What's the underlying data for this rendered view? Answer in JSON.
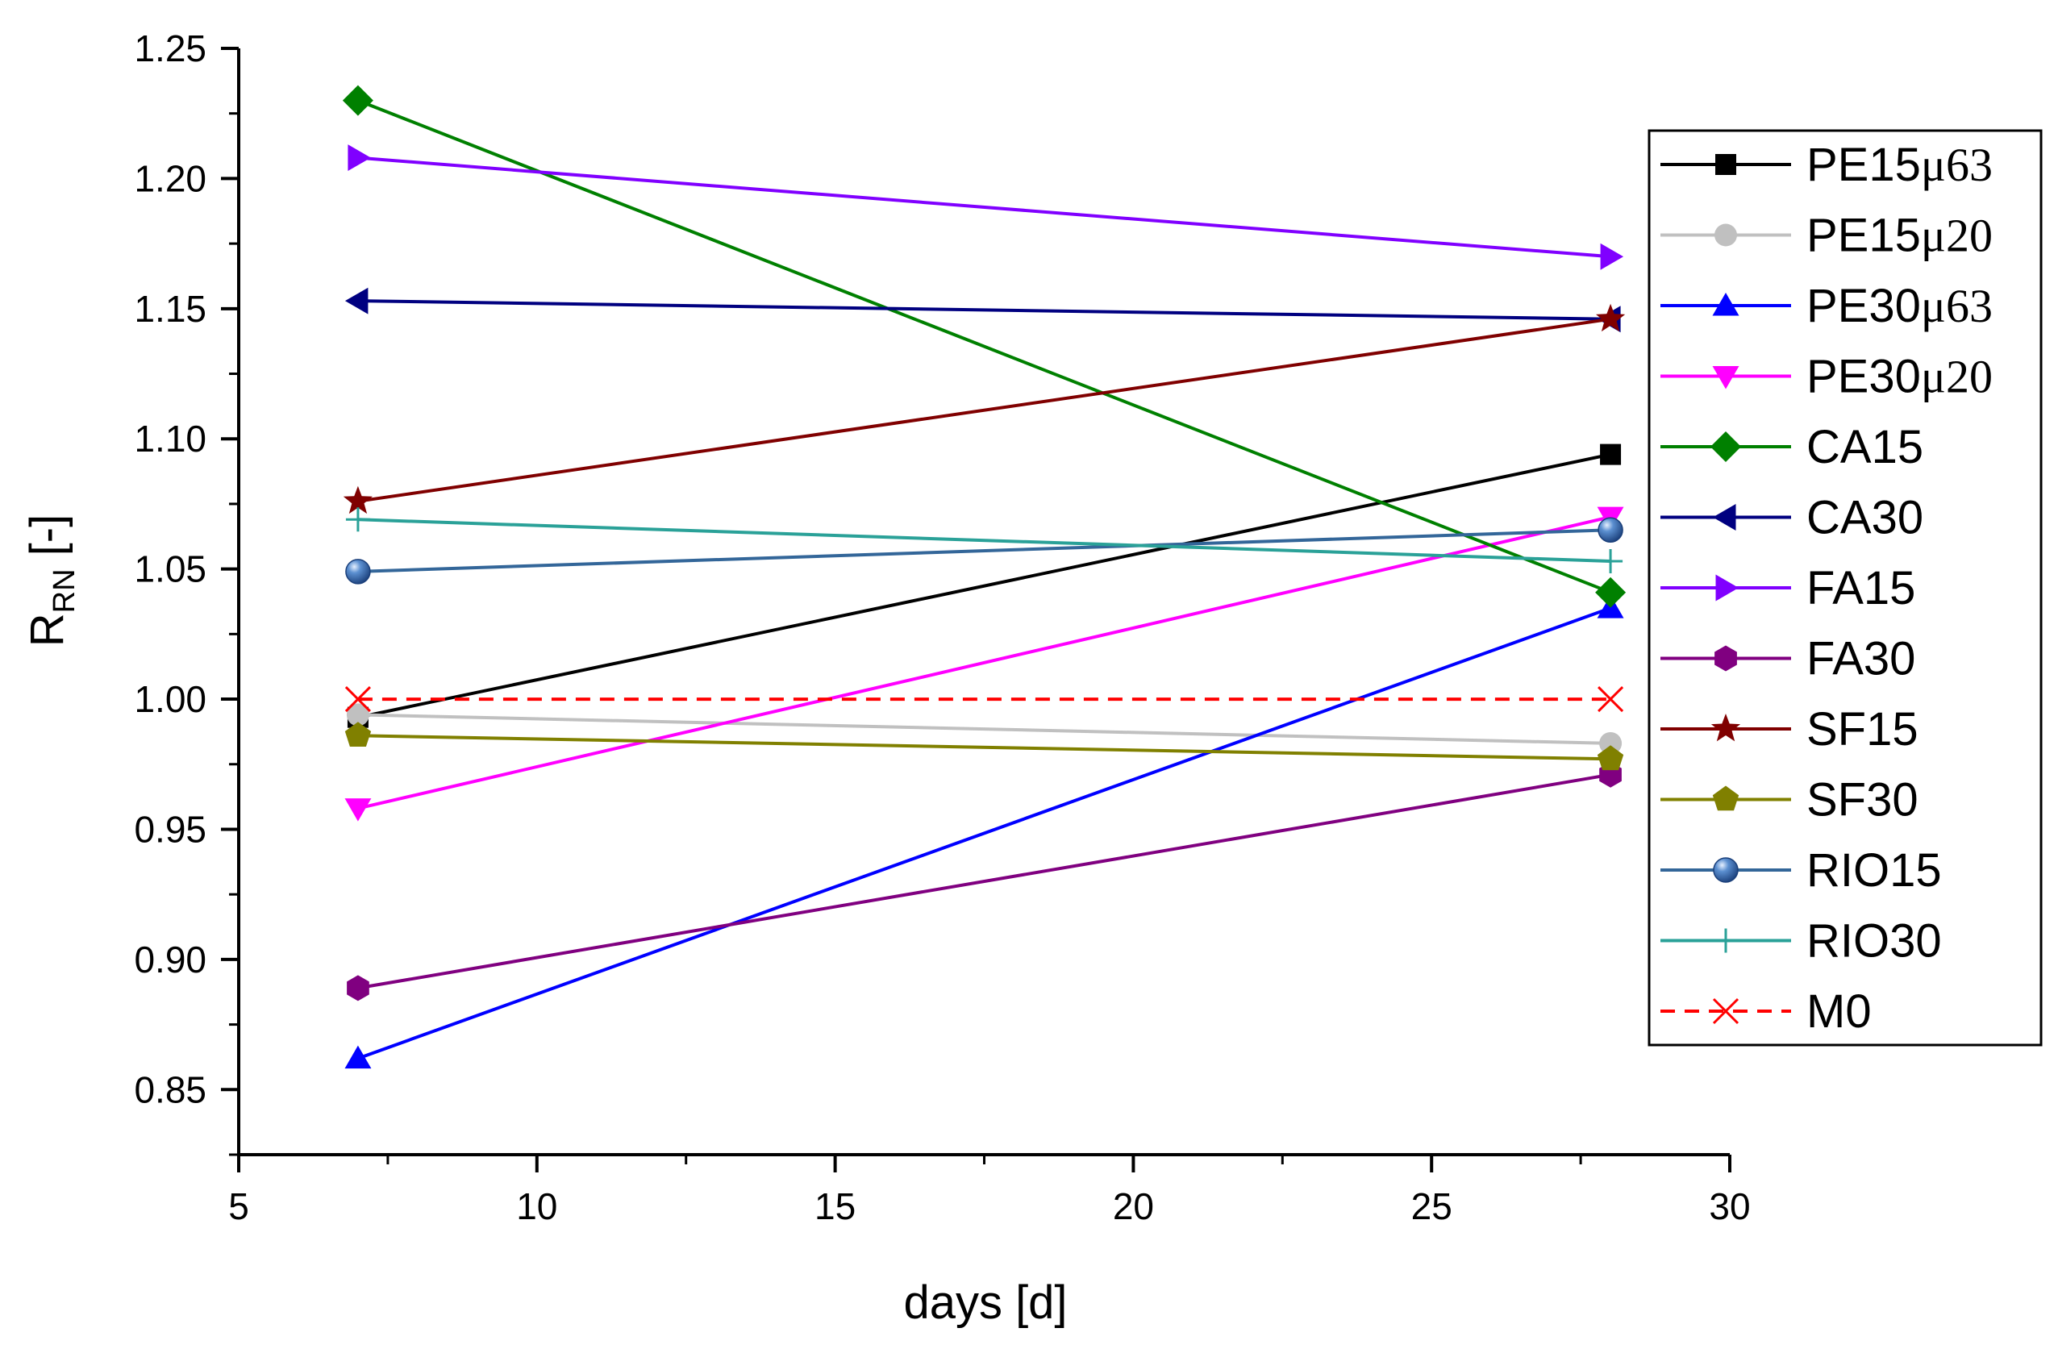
{
  "chart_data": {
    "type": "line",
    "title": "",
    "xlabel": "days [d]",
    "ylabel": {
      "main": "R",
      "sub": "RN",
      "suffix": " [-]"
    },
    "xlim": [
      5,
      30
    ],
    "ylim": [
      0.825,
      1.25
    ],
    "xticks": [
      5,
      10,
      15,
      20,
      25,
      30
    ],
    "xtick_labels": [
      "5",
      "10",
      "15",
      "20",
      "25",
      "30"
    ],
    "yticks": [
      0.85,
      0.9,
      0.95,
      1.0,
      1.05,
      1.1,
      1.15,
      1.2,
      1.25
    ],
    "ytick_labels": [
      "0.85",
      "0.90",
      "0.95",
      "1.00",
      "1.05",
      "1.10",
      "1.15",
      "1.20",
      "1.25"
    ],
    "legend_position": "right",
    "grid": false,
    "x": [
      7,
      28
    ],
    "series": [
      {
        "name": "PE15μ63",
        "prefix": "PE15",
        "greek": "μ63",
        "values": [
          0.993,
          1.094
        ],
        "color": "#000000",
        "marker": "square",
        "dash": false
      },
      {
        "name": "PE15μ20",
        "prefix": "PE15",
        "greek": "μ20",
        "values": [
          0.994,
          0.983
        ],
        "color": "#c0c0c0",
        "marker": "circle",
        "dash": false
      },
      {
        "name": "PE30μ63",
        "prefix": "PE30",
        "greek": "μ63",
        "values": [
          0.862,
          1.035
        ],
        "color": "#0000ff",
        "marker": "triangle-up",
        "dash": false
      },
      {
        "name": "PE30μ20",
        "prefix": "PE30",
        "greek": "μ20",
        "values": [
          0.958,
          1.07
        ],
        "color": "#ff00ff",
        "marker": "triangle-down",
        "dash": false
      },
      {
        "name": "CA15",
        "prefix": "CA15",
        "greek": "",
        "values": [
          1.23,
          1.041
        ],
        "color": "#008000",
        "marker": "diamond",
        "dash": false
      },
      {
        "name": "CA30",
        "prefix": "CA30",
        "greek": "",
        "values": [
          1.153,
          1.146
        ],
        "color": "#000080",
        "marker": "triangle-left",
        "dash": false
      },
      {
        "name": "FA15",
        "prefix": "FA15",
        "greek": "",
        "values": [
          1.208,
          1.17
        ],
        "color": "#8000ff",
        "marker": "triangle-right",
        "dash": false
      },
      {
        "name": "FA30",
        "prefix": "FA30",
        "greek": "",
        "values": [
          0.889,
          0.971
        ],
        "color": "#800080",
        "marker": "hexagon",
        "dash": false
      },
      {
        "name": "SF15",
        "prefix": "SF15",
        "greek": "",
        "values": [
          1.076,
          1.146
        ],
        "color": "#800000",
        "marker": "star",
        "dash": false
      },
      {
        "name": "SF30",
        "prefix": "SF30",
        "greek": "",
        "values": [
          0.986,
          0.977
        ],
        "color": "#808000",
        "marker": "pentagon",
        "dash": false
      },
      {
        "name": "RIO15",
        "prefix": "RIO15",
        "greek": "",
        "values": [
          1.049,
          1.065
        ],
        "color": "#336699",
        "marker": "sphere",
        "dash": false
      },
      {
        "name": "RIO30",
        "prefix": "RIO30",
        "greek": "",
        "values": [
          1.069,
          1.053
        ],
        "color": "#2aa198",
        "marker": "plus",
        "dash": false
      },
      {
        "name": "M0",
        "prefix": "M0",
        "greek": "",
        "values": [
          1.0,
          1.0
        ],
        "color": "#ff0000",
        "marker": "x",
        "dash": true
      }
    ]
  }
}
